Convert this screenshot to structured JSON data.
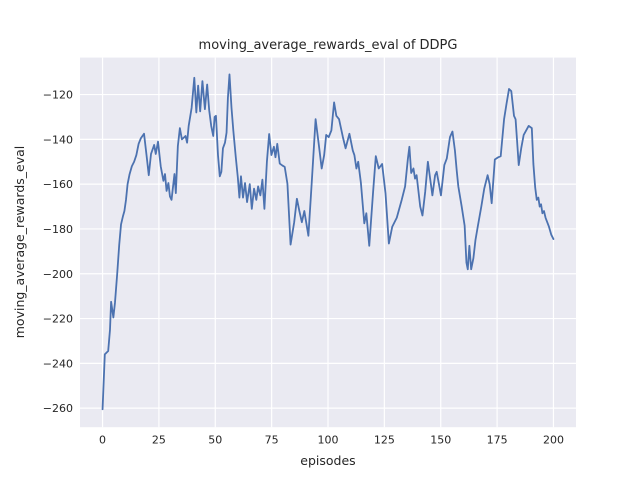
{
  "figure": {
    "background": "#ffffff"
  },
  "chart_data": {
    "type": "line",
    "title": "moving_average_rewards_eval of DDPG",
    "xlabel": "episodes",
    "ylabel": "moving_average_rewards_eval",
    "xlim": [
      -10,
      210
    ],
    "ylim": [
      -268.5,
      -103.5
    ],
    "xticks": [
      0,
      25,
      50,
      75,
      100,
      125,
      150,
      175,
      200
    ],
    "xtick_labels": [
      "0",
      "25",
      "50",
      "75",
      "100",
      "125",
      "150",
      "175",
      "200"
    ],
    "yticks": [
      -260,
      -240,
      -220,
      -200,
      -180,
      -160,
      -140,
      -120
    ],
    "ytick_labels": [
      "−260",
      "−240",
      "−220",
      "−200",
      "−180",
      "−160",
      "−140",
      "−120"
    ],
    "grid": true,
    "legend_position": "none",
    "style": {
      "axes_background": "#eaeaf2",
      "grid_color": "#ffffff",
      "line_color": "#4c72b0",
      "text_color": "#262626"
    },
    "series": [
      {
        "name": "moving_average_rewards_eval",
        "color": "#4c72b0",
        "points": [
          [
            0,
            -260.5
          ],
          [
            1,
            -236
          ],
          [
            2.5,
            -234.5
          ],
          [
            3.3,
            -225
          ],
          [
            3.8,
            -212.5
          ],
          [
            4.8,
            -219.5
          ],
          [
            5.5,
            -213
          ],
          [
            6.5,
            -200
          ],
          [
            7.4,
            -187
          ],
          [
            8.2,
            -178
          ],
          [
            9,
            -174.5
          ],
          [
            9.7,
            -172
          ],
          [
            10.4,
            -167
          ],
          [
            11.1,
            -160
          ],
          [
            12,
            -155.5
          ],
          [
            13,
            -152
          ],
          [
            14,
            -150
          ],
          [
            15,
            -147
          ],
          [
            16,
            -142
          ],
          [
            17,
            -139.5
          ],
          [
            18.4,
            -137.5
          ],
          [
            19.5,
            -147
          ],
          [
            20.5,
            -156
          ],
          [
            21.5,
            -146.5
          ],
          [
            22.9,
            -142.5
          ],
          [
            23.6,
            -146.5
          ],
          [
            24.6,
            -141
          ],
          [
            25.8,
            -152
          ],
          [
            27,
            -158.5
          ],
          [
            27.7,
            -155.5
          ],
          [
            28.4,
            -163
          ],
          [
            29.2,
            -159.5
          ],
          [
            29.9,
            -165.5
          ],
          [
            30.6,
            -167
          ],
          [
            31.9,
            -155.5
          ],
          [
            32.5,
            -164
          ],
          [
            33.4,
            -143
          ],
          [
            34.3,
            -135
          ],
          [
            35.2,
            -140
          ],
          [
            36.8,
            -138.5
          ],
          [
            37.5,
            -141.5
          ],
          [
            38.2,
            -134
          ],
          [
            39.5,
            -126
          ],
          [
            40.7,
            -112.5
          ],
          [
            41.6,
            -128
          ],
          [
            42.4,
            -116
          ],
          [
            43.3,
            -127.5
          ],
          [
            44.3,
            -114
          ],
          [
            45.4,
            -126.5
          ],
          [
            46.4,
            -115.5
          ],
          [
            47.3,
            -127
          ],
          [
            48.2,
            -134
          ],
          [
            49.1,
            -138.5
          ],
          [
            49.7,
            -130
          ],
          [
            50.3,
            -129.5
          ],
          [
            51.2,
            -147
          ],
          [
            52,
            -156.5
          ],
          [
            52.7,
            -154.5
          ],
          [
            53.4,
            -144
          ],
          [
            54.3,
            -141.5
          ],
          [
            55,
            -137
          ],
          [
            55.6,
            -121.5
          ],
          [
            56.3,
            -111
          ],
          [
            57.2,
            -126
          ],
          [
            58,
            -136
          ],
          [
            59.1,
            -148
          ],
          [
            60,
            -157
          ],
          [
            60.7,
            -166
          ],
          [
            61.4,
            -156.5
          ],
          [
            62.3,
            -166
          ],
          [
            63.2,
            -159.5
          ],
          [
            64.1,
            -168
          ],
          [
            65.3,
            -160
          ],
          [
            66.2,
            -171
          ],
          [
            67.2,
            -162
          ],
          [
            68.2,
            -167
          ],
          [
            69,
            -161
          ],
          [
            70,
            -165
          ],
          [
            70.9,
            -158
          ],
          [
            71.8,
            -171
          ],
          [
            72.9,
            -150
          ],
          [
            73.9,
            -137.6
          ],
          [
            74.9,
            -147
          ],
          [
            76,
            -143.3
          ],
          [
            76.7,
            -148
          ],
          [
            77.5,
            -142
          ],
          [
            78.6,
            -150.8
          ],
          [
            79.8,
            -151.7
          ],
          [
            80.8,
            -152.3
          ],
          [
            82,
            -159.8
          ],
          [
            83.4,
            -187
          ],
          [
            85,
            -177
          ],
          [
            86.2,
            -166.5
          ],
          [
            87.3,
            -172
          ],
          [
            88.4,
            -177
          ],
          [
            89.5,
            -172
          ],
          [
            91.3,
            -183
          ],
          [
            92.8,
            -159
          ],
          [
            94.5,
            -131
          ],
          [
            96,
            -143
          ],
          [
            97.2,
            -153
          ],
          [
            98.3,
            -147
          ],
          [
            99.2,
            -138
          ],
          [
            100.3,
            -139
          ],
          [
            101.5,
            -136
          ],
          [
            102.7,
            -123.5
          ],
          [
            103.7,
            -129.5
          ],
          [
            104.9,
            -131
          ],
          [
            106.6,
            -139
          ],
          [
            107.8,
            -144
          ],
          [
            109.5,
            -137.5
          ],
          [
            111,
            -145
          ],
          [
            111.7,
            -147
          ],
          [
            112.6,
            -153
          ],
          [
            113.4,
            -150
          ],
          [
            114.6,
            -159.5
          ],
          [
            116.1,
            -177.5
          ],
          [
            117,
            -173
          ],
          [
            118.3,
            -187.5
          ],
          [
            120,
            -163.5
          ],
          [
            121.2,
            -147.5
          ],
          [
            122.5,
            -153
          ],
          [
            124,
            -151
          ],
          [
            125.5,
            -164
          ],
          [
            127,
            -186.5
          ],
          [
            128.5,
            -179
          ],
          [
            130.5,
            -175
          ],
          [
            132.7,
            -167
          ],
          [
            134.2,
            -161
          ],
          [
            135.4,
            -149
          ],
          [
            136.1,
            -143.3
          ],
          [
            136.9,
            -155
          ],
          [
            137.9,
            -153
          ],
          [
            138.6,
            -157.5
          ],
          [
            139.3,
            -156
          ],
          [
            140.9,
            -170
          ],
          [
            141.9,
            -174
          ],
          [
            143.1,
            -163.5
          ],
          [
            144.3,
            -150
          ],
          [
            145.3,
            -157.5
          ],
          [
            146.3,
            -165
          ],
          [
            147.5,
            -156
          ],
          [
            148.2,
            -154.5
          ],
          [
            149.4,
            -161
          ],
          [
            150.1,
            -165
          ],
          [
            151.6,
            -151.5
          ],
          [
            152.7,
            -148.5
          ],
          [
            154.1,
            -139
          ],
          [
            155.2,
            -136.5
          ],
          [
            156.3,
            -145
          ],
          [
            157.1,
            -154
          ],
          [
            157.8,
            -161
          ],
          [
            159.3,
            -170
          ],
          [
            160.6,
            -178.5
          ],
          [
            161.4,
            -195
          ],
          [
            162,
            -198
          ],
          [
            162.7,
            -187.5
          ],
          [
            163.5,
            -198
          ],
          [
            164.5,
            -193
          ],
          [
            165.4,
            -185
          ],
          [
            166.5,
            -178.5
          ],
          [
            168,
            -170
          ],
          [
            169.3,
            -162
          ],
          [
            170.8,
            -156
          ],
          [
            171.7,
            -160
          ],
          [
            172.6,
            -168.5
          ],
          [
            174,
            -149
          ],
          [
            175.5,
            -148
          ],
          [
            176.6,
            -147.5
          ],
          [
            178.1,
            -131
          ],
          [
            179.2,
            -124
          ],
          [
            180.3,
            -117.5
          ],
          [
            181.3,
            -118.5
          ],
          [
            182.5,
            -129.5
          ],
          [
            183.2,
            -131
          ],
          [
            184.6,
            -151.5
          ],
          [
            185.7,
            -144
          ],
          [
            186.8,
            -138
          ],
          [
            189,
            -134
          ],
          [
            190.4,
            -135
          ],
          [
            191.1,
            -151
          ],
          [
            191.9,
            -161.5
          ],
          [
            192.6,
            -167
          ],
          [
            193.3,
            -166
          ],
          [
            193.9,
            -170
          ],
          [
            194.5,
            -169
          ],
          [
            195.1,
            -173
          ],
          [
            195.8,
            -172
          ],
          [
            196.5,
            -175
          ],
          [
            198,
            -179
          ],
          [
            199,
            -182.5
          ],
          [
            200,
            -184.5
          ]
        ]
      }
    ]
  }
}
